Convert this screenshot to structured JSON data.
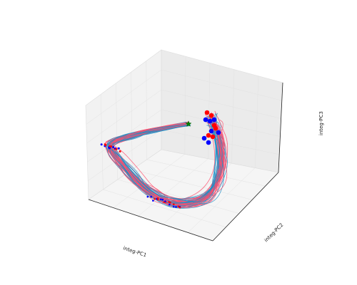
{
  "chart_data": {
    "type": "line3d",
    "xlabel": "integ-PC1",
    "ylabel": "integ-PC2",
    "zlabel": "integ-PC3",
    "grid": true,
    "series_count": 60,
    "colors": {
      "trajectory_a": "#1f8fc6",
      "trajectory_b": "#ff4f6e",
      "marker_blue": "#0000ff",
      "marker_red": "#ff0000",
      "start_marker": "#008000",
      "pane_left": "#f2f2f2",
      "pane_right": "#ebebeb",
      "pane_floor": "#f5f5f5"
    },
    "start_marker_shape": "star",
    "end_marker_shape": "circle",
    "annotations": []
  }
}
